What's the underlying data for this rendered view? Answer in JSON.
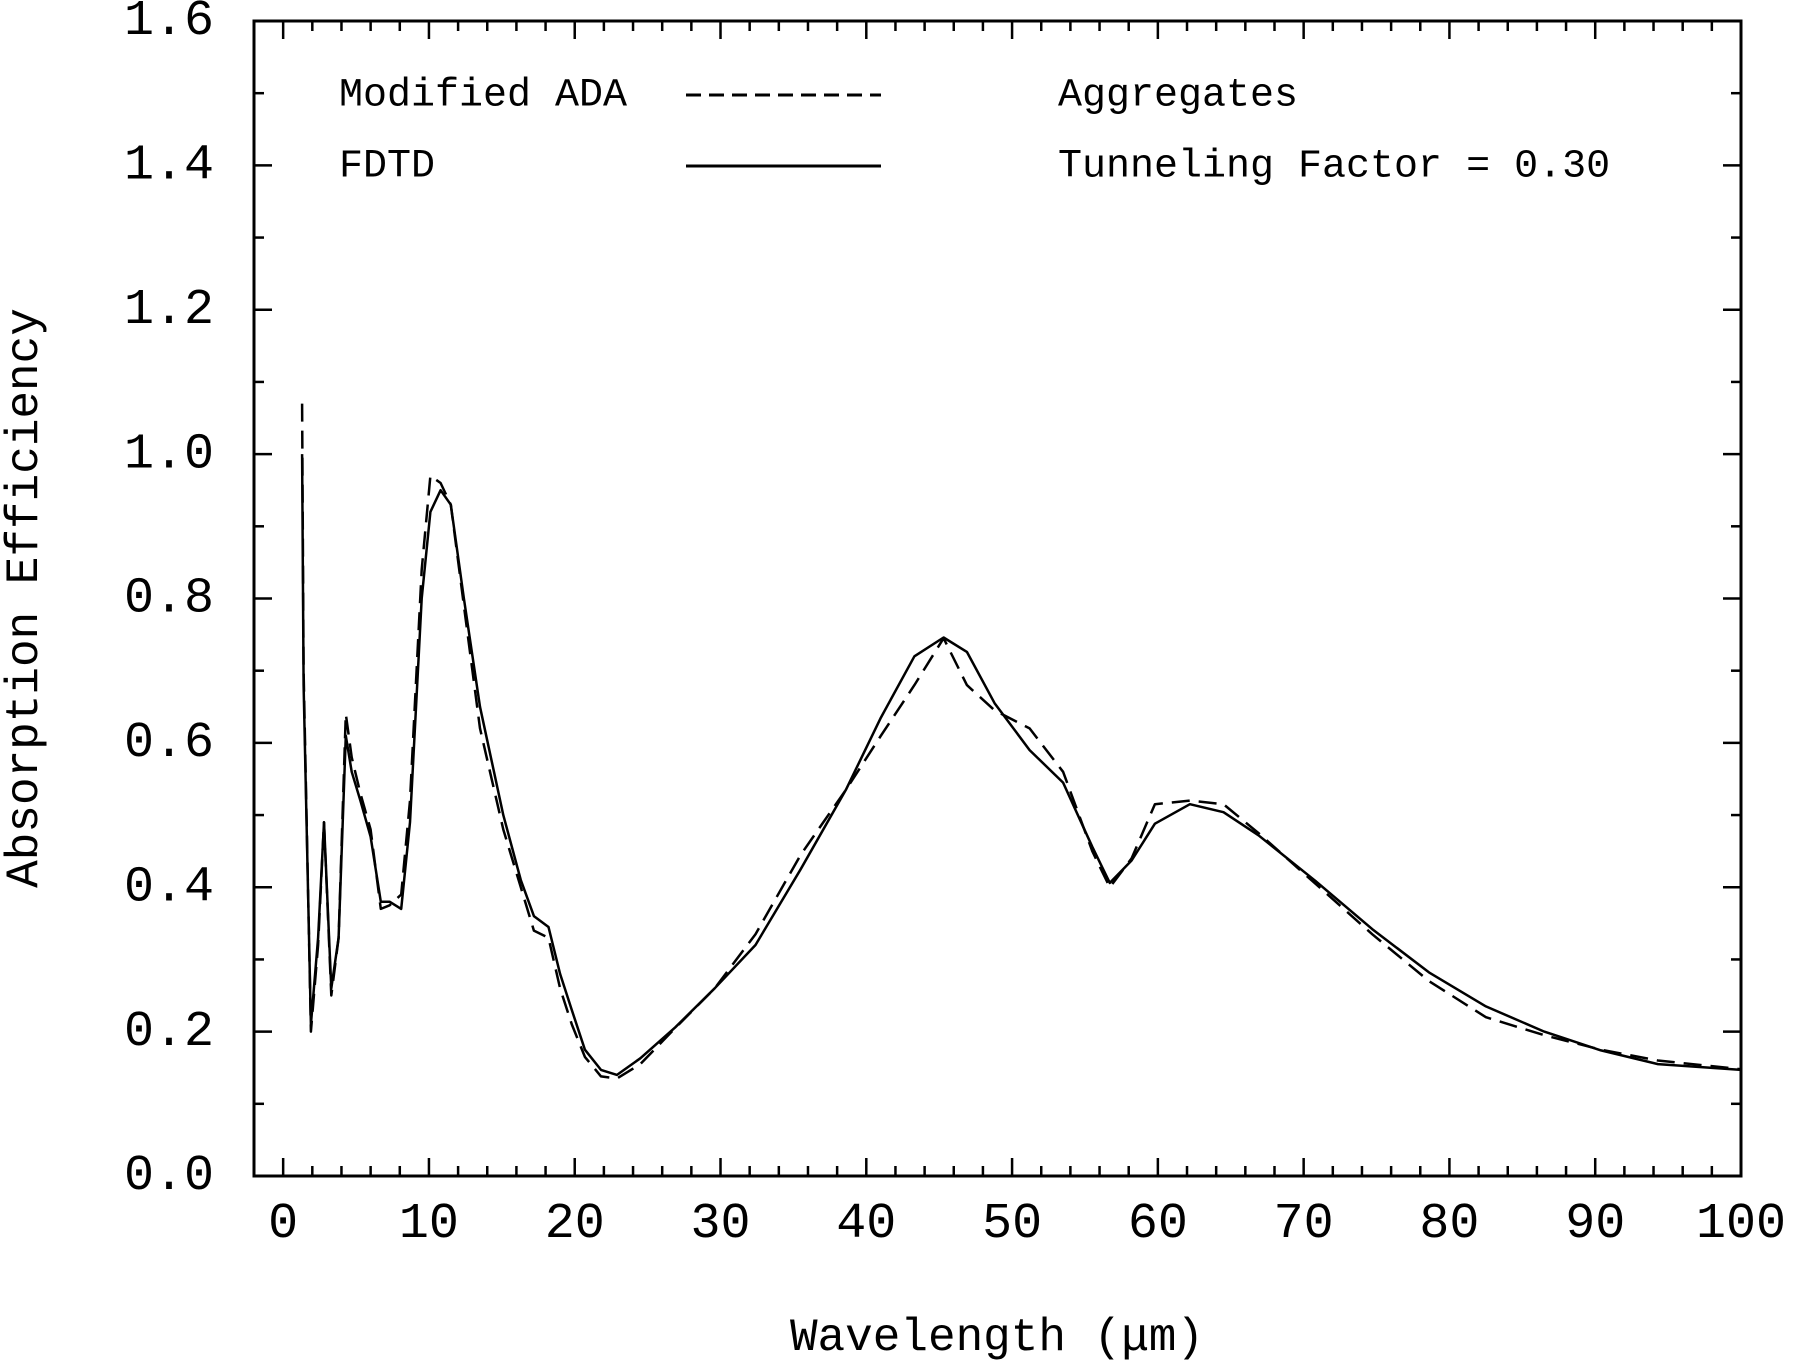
{
  "chart_data": {
    "type": "line",
    "xlabel": "Wavelength (μm)",
    "ylabel": "Absorption Efficiency",
    "xlim": [
      -2,
      100
    ],
    "ylim": [
      0,
      1.6
    ],
    "xticks": [
      0,
      10,
      20,
      30,
      40,
      50,
      60,
      70,
      80,
      90,
      100
    ],
    "yticks": [
      {
        "value": 0,
        "label": "0.0"
      },
      0.2,
      0.4,
      0.6,
      0.8,
      {
        "value": 1,
        "label": "1.0"
      },
      1.2,
      1.4,
      1.6
    ],
    "grid": false,
    "legend": "upper left",
    "annotations": [
      "Aggregates",
      "Tunneling Factor = 0.30"
    ],
    "x": [
      1.3,
      1.4,
      1.9,
      2.4,
      2.8,
      3.3,
      3.8,
      4.3,
      4.7,
      5.3,
      6.0,
      6.7,
      7.3,
      8.1,
      8.7,
      9.5,
      10.1,
      10.8,
      11.5,
      12.4,
      13.5,
      15.1,
      16.3,
      17.2,
      18.2,
      19.0,
      19.8,
      20.7,
      21.8,
      22.9,
      24.5,
      26.9,
      29.6,
      32.4,
      35.5,
      38.6,
      41.0,
      43.3,
      45.3,
      46.9,
      48.8,
      51.2,
      53.5,
      55.5,
      56.7,
      58.2,
      59.8,
      62.2,
      64.5,
      66.9,
      70.8,
      74.7,
      78.6,
      82.5,
      86.5,
      90.4,
      94.3,
      100
    ],
    "series": [
      {
        "name": "Modified ADA",
        "color": "#000000",
        "dash": true,
        "values": [
          1.07,
          0.7,
          0.2,
          0.32,
          0.49,
          0.25,
          0.33,
          0.64,
          0.58,
          0.53,
          0.48,
          0.37,
          0.375,
          0.39,
          0.52,
          0.84,
          0.97,
          0.96,
          0.93,
          0.79,
          0.62,
          0.48,
          0.4,
          0.34,
          0.33,
          0.26,
          0.21,
          0.165,
          0.138,
          0.135,
          0.155,
          0.205,
          0.26,
          0.335,
          0.445,
          0.535,
          0.61,
          0.68,
          0.745,
          0.68,
          0.645,
          0.62,
          0.56,
          0.45,
          0.4,
          0.44,
          0.515,
          0.52,
          0.515,
          0.475,
          0.405,
          0.335,
          0.27,
          0.22,
          0.195,
          0.175,
          0.16,
          0.148
        ]
      },
      {
        "name": "FDTD",
        "color": "#000000",
        "dash": false,
        "values": [
          1.0,
          0.68,
          0.21,
          0.33,
          0.49,
          0.26,
          0.33,
          0.61,
          0.56,
          0.52,
          0.47,
          0.38,
          0.38,
          0.37,
          0.49,
          0.8,
          0.92,
          0.95,
          0.93,
          0.8,
          0.65,
          0.5,
          0.41,
          0.36,
          0.345,
          0.28,
          0.23,
          0.175,
          0.147,
          0.14,
          0.163,
          0.206,
          0.26,
          0.32,
          0.425,
          0.535,
          0.635,
          0.72,
          0.746,
          0.726,
          0.655,
          0.59,
          0.545,
          0.456,
          0.406,
          0.437,
          0.488,
          0.515,
          0.504,
          0.472,
          0.409,
          0.342,
          0.282,
          0.235,
          0.2,
          0.174,
          0.155,
          0.147
        ]
      }
    ]
  }
}
